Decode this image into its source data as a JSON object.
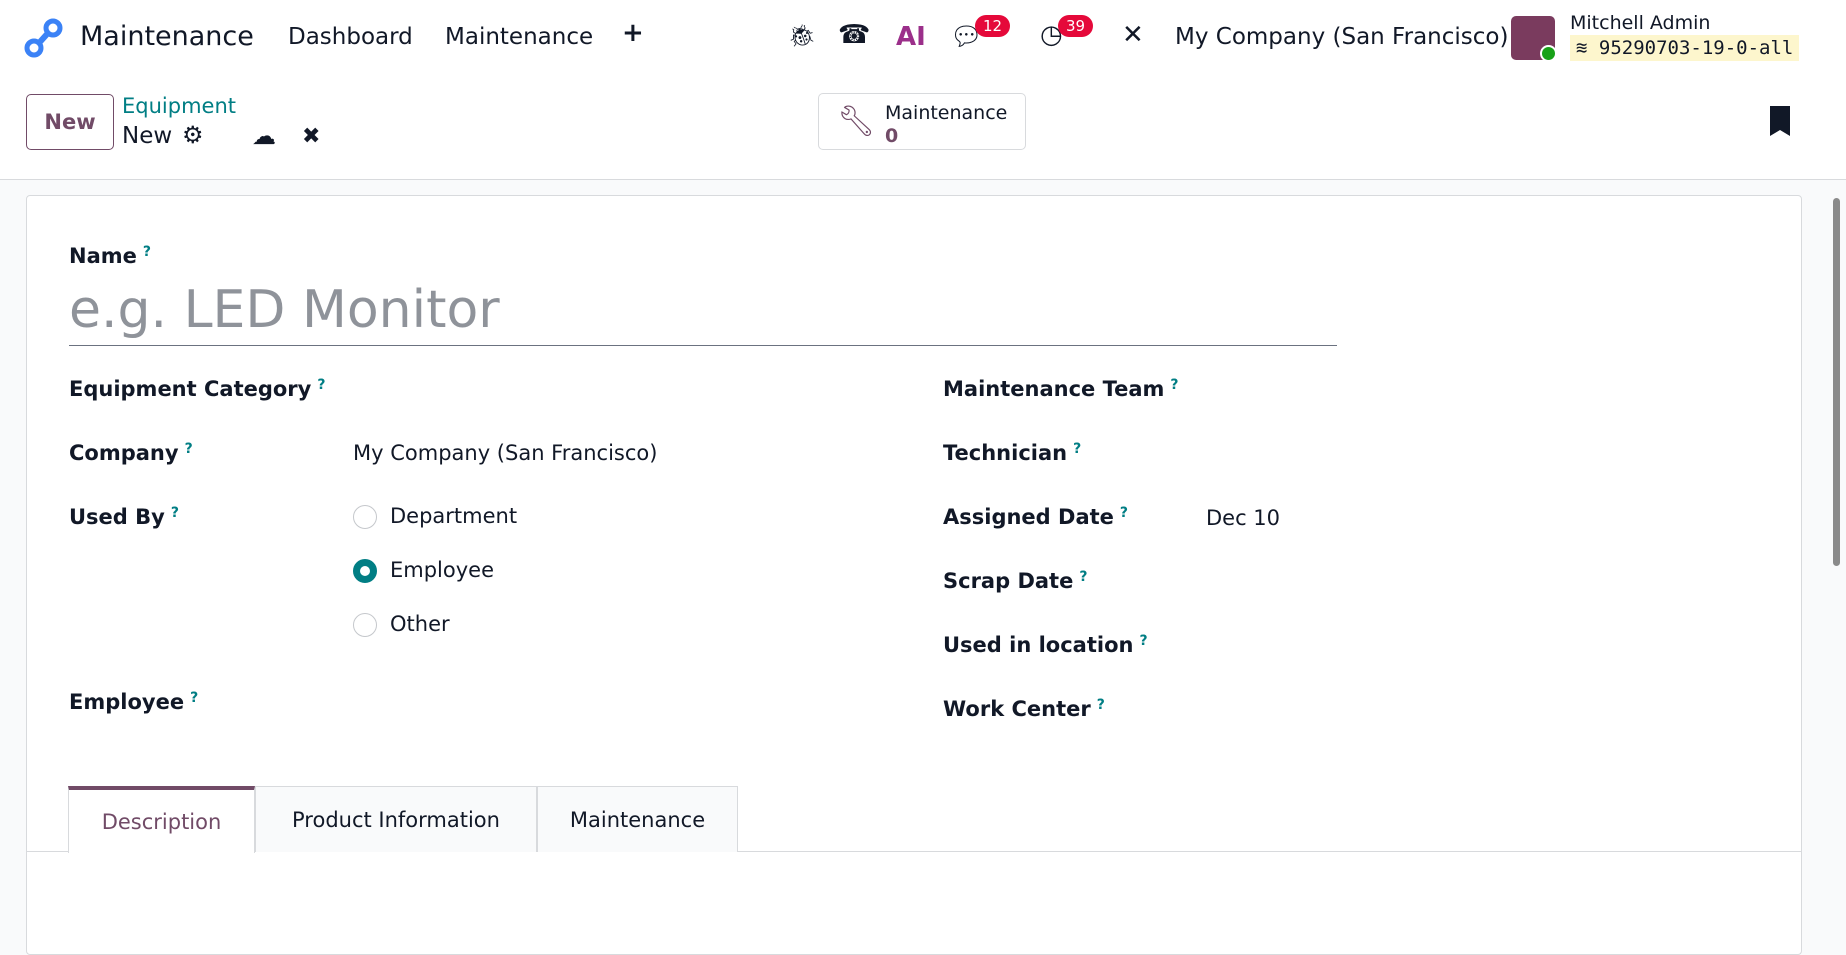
{
  "navbar": {
    "app_name": "Maintenance",
    "menu": [
      "Dashboard",
      "Maintenance"
    ],
    "plus_icon": "plus-icon",
    "chat_count": "12",
    "activity_count": "39",
    "company": "My Company (San Francisco)",
    "user": "Mitchell Admin",
    "database": "95290703-19-0-all",
    "ai_label": "AI"
  },
  "control_panel": {
    "new_label": "New",
    "breadcrumb_parent": "Equipment",
    "breadcrumb_current": "New",
    "smart_button_label": "Maintenance",
    "smart_button_count": "0"
  },
  "form": {
    "name_label": "Name",
    "name_placeholder": "e.g. LED Monitor",
    "left": {
      "category_label": "Equipment Category",
      "company_label": "Company",
      "company_value": "My Company (San Francisco)",
      "used_by_label": "Used By",
      "used_by_options": [
        "Department",
        "Employee",
        "Other"
      ],
      "used_by_selected": "Employee",
      "employee_label": "Employee"
    },
    "right": {
      "team_label": "Maintenance Team",
      "technician_label": "Technician",
      "assigned_date_label": "Assigned Date",
      "assigned_date_value": "Dec 10",
      "scrap_date_label": "Scrap Date",
      "location_label": "Used in location",
      "work_center_label": "Work Center"
    },
    "help_mark": "?",
    "tabs": [
      "Description",
      "Product Information",
      "Maintenance"
    ],
    "active_tab": "Description"
  },
  "colors": {
    "brand": "#714b67",
    "accent": "#017e84",
    "badge": "#e5093a"
  }
}
